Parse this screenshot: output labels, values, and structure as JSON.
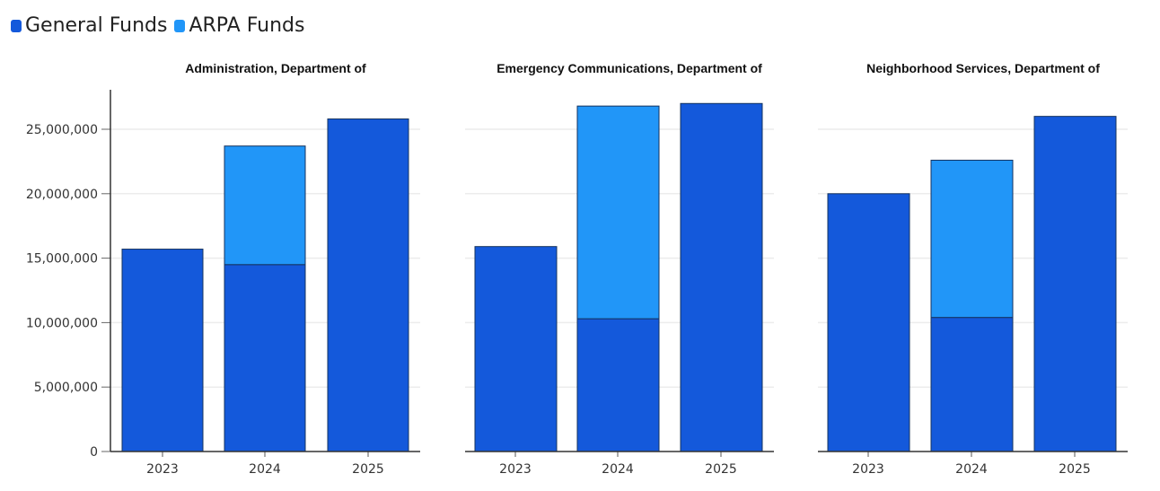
{
  "legend": {
    "items": [
      {
        "label": "General Funds",
        "color": "#1459DB"
      },
      {
        "label": "ARPA Funds",
        "color": "#2196F8"
      }
    ]
  },
  "chart_data": {
    "type": "bar",
    "stacked": true,
    "categories": [
      "2023",
      "2024",
      "2025"
    ],
    "ylim": [
      0,
      28000000
    ],
    "yticks": [
      0,
      5000000,
      10000000,
      15000000,
      20000000,
      25000000
    ],
    "ytick_labels": [
      "0",
      "5,000,000",
      "10,000,000",
      "15,000,000",
      "20,000,000",
      "25,000,000"
    ],
    "grid": true,
    "legend_position": "top-left",
    "colors": {
      "General Funds": "#1459DB",
      "ARPA Funds": "#2196F8"
    },
    "panels": [
      {
        "title": "Administration, Department of",
        "series": [
          {
            "name": "General Funds",
            "values": [
              15700000,
              14500000,
              25800000
            ]
          },
          {
            "name": "ARPA Funds",
            "values": [
              0,
              9200000,
              0
            ]
          }
        ]
      },
      {
        "title": "Emergency Communications, Department of",
        "series": [
          {
            "name": "General Funds",
            "values": [
              15900000,
              10300000,
              27000000
            ]
          },
          {
            "name": "ARPA Funds",
            "values": [
              0,
              16500000,
              0
            ]
          }
        ]
      },
      {
        "title": "Neighborhood Services, Department of",
        "series": [
          {
            "name": "General Funds",
            "values": [
              20000000,
              10400000,
              26000000
            ]
          },
          {
            "name": "ARPA Funds",
            "values": [
              0,
              12200000,
              0
            ]
          }
        ]
      }
    ]
  }
}
